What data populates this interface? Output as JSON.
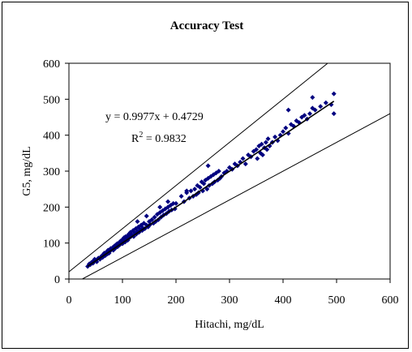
{
  "chart_data": {
    "type": "scatter",
    "title": "Accuracy Test",
    "xlabel": "Hitachi, mg/dL",
    "ylabel": "G5, mg/dL",
    "xlim": [
      0,
      600
    ],
    "ylim": [
      0,
      600
    ],
    "xticks": [
      "0",
      "100",
      "200",
      "300",
      "400",
      "500",
      "600"
    ],
    "yticks": [
      "0",
      "100",
      "200",
      "300",
      "400",
      "500",
      "600"
    ],
    "grid": false,
    "legend": "none",
    "equation": "y = 0.9977x + 0.4729",
    "r2_prefix": "R",
    "r2_sup": "2",
    "r2_value": " = 0.9832",
    "marker_color": "#000080",
    "regression": {
      "slope": 0.9977,
      "intercept": 0.4729,
      "x_range": [
        35,
        495
      ]
    },
    "reference_lines": [
      {
        "slope": 1.2,
        "intercept": 20,
        "x_range": [
          0,
          508
        ]
      },
      {
        "slope": 0.8,
        "intercept": -20,
        "x_range": [
          25,
          600
        ]
      }
    ],
    "points": {
      "x": [
        35,
        38,
        40,
        42,
        44,
        45,
        47,
        48,
        50,
        52,
        55,
        58,
        60,
        62,
        63,
        65,
        66,
        68,
        70,
        72,
        73,
        75,
        77,
        78,
        80,
        82,
        83,
        85,
        87,
        88,
        90,
        91,
        93,
        95,
        96,
        98,
        100,
        100,
        102,
        103,
        105,
        106,
        108,
        110,
        110,
        112,
        113,
        115,
        116,
        118,
        120,
        121,
        123,
        125,
        126,
        128,
        130,
        131,
        133,
        135,
        137,
        138,
        140,
        142,
        145,
        148,
        150,
        152,
        155,
        158,
        160,
        162,
        165,
        167,
        170,
        172,
        175,
        177,
        180,
        182,
        185,
        187,
        190,
        192,
        195,
        198,
        210,
        215,
        220,
        225,
        228,
        232,
        235,
        238,
        240,
        242,
        245,
        248,
        250,
        252,
        255,
        258,
        260,
        262,
        265,
        268,
        270,
        272,
        275,
        278,
        280,
        282,
        285,
        290,
        295,
        300,
        305,
        310,
        315,
        320,
        325,
        330,
        335,
        340,
        345,
        350,
        352,
        355,
        358,
        360,
        362,
        365,
        368,
        370,
        372,
        375,
        380,
        385,
        390,
        395,
        400,
        405,
        410,
        415,
        420,
        425,
        430,
        435,
        440,
        445,
        450,
        455,
        460,
        470,
        480,
        490,
        495,
        495,
        455,
        410,
        380,
        300,
        260,
        220,
        128,
        145,
        170,
        185,
        200
      ],
      "y": [
        35,
        42,
        40,
        46,
        48,
        44,
        50,
        55,
        52,
        48,
        58,
        55,
        62,
        65,
        60,
        68,
        72,
        65,
        75,
        70,
        80,
        72,
        78,
        85,
        82,
        88,
        80,
        92,
        86,
        95,
        98,
        90,
        100,
        95,
        105,
        102,
        110,
        98,
        108,
        115,
        103,
        118,
        112,
        120,
        108,
        125,
        115,
        130,
        118,
        122,
        135,
        118,
        128,
        140,
        125,
        132,
        145,
        130,
        138,
        150,
        135,
        142,
        155,
        140,
        150,
        145,
        160,
        152,
        165,
        155,
        172,
        160,
        180,
        165,
        185,
        172,
        190,
        178,
        195,
        182,
        200,
        188,
        205,
        192,
        210,
        195,
        230,
        215,
        240,
        225,
        245,
        230,
        250,
        235,
        260,
        240,
        255,
        270,
        245,
        265,
        275,
        250,
        280,
        260,
        285,
        265,
        290,
        270,
        295,
        275,
        300,
        280,
        285,
        295,
        300,
        310,
        305,
        320,
        315,
        325,
        335,
        320,
        345,
        340,
        355,
        360,
        335,
        370,
        350,
        375,
        345,
        365,
        380,
        360,
        390,
        370,
        380,
        395,
        385,
        400,
        410,
        420,
        405,
        430,
        425,
        440,
        435,
        450,
        455,
        445,
        460,
        475,
        470,
        480,
        490,
        485,
        515,
        460,
        505,
        470,
        380,
        310,
        315,
        245,
        160,
        175,
        200,
        215,
        210
      ]
    }
  }
}
